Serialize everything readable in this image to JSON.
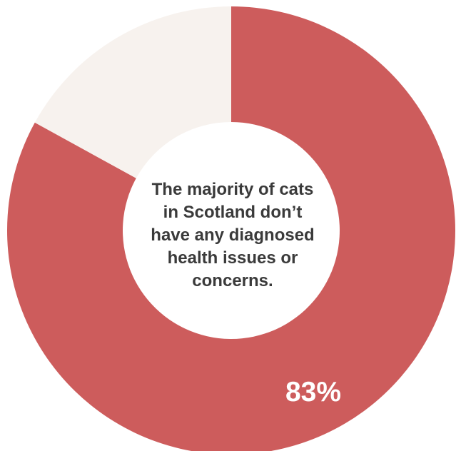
{
  "chart_data": {
    "type": "pie",
    "variant": "donut",
    "slices": [
      {
        "value": 83,
        "label": "83%",
        "color": "#CD5C5C"
      },
      {
        "value": 17,
        "color": "#F7F2EE"
      }
    ],
    "center_text_lines": [
      "The majority of cats",
      "in Scotland don’t",
      "have any diagnosed",
      "health issues or",
      "concerns."
    ],
    "start_angle": "top",
    "direction": "clockwise"
  }
}
